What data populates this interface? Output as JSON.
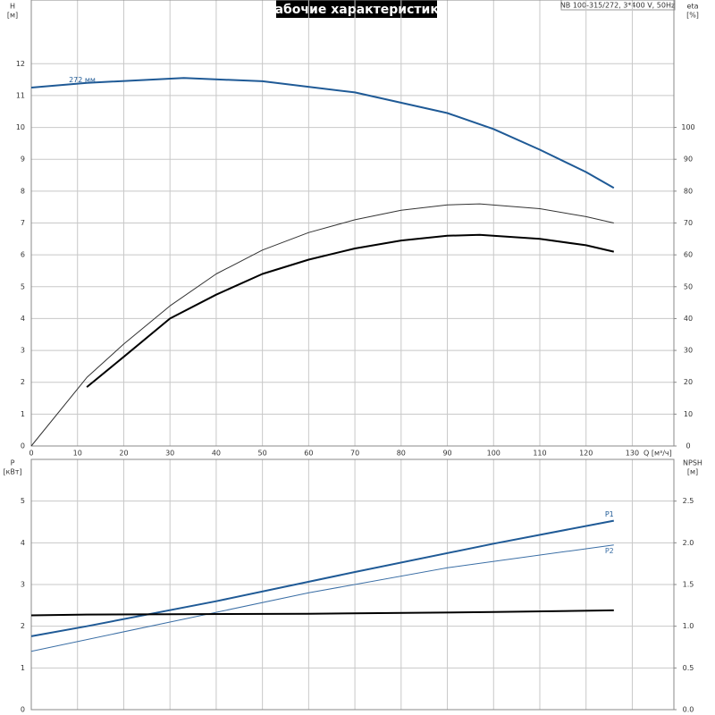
{
  "title": "Рабочие характеристики",
  "subtitle": "NB 100-315/272, 3*400 V, 50Hz",
  "chart_data": [
    {
      "type": "line",
      "y_label": "H",
      "y_unit": "[м]",
      "y2_label": "eta",
      "y2_unit": "[%]",
      "x_label": "Q [м³/ч]",
      "xlim": [
        0,
        139
      ],
      "xticks": [
        0,
        10,
        20,
        30,
        40,
        50,
        60,
        70,
        80,
        90,
        100,
        110,
        120,
        130
      ],
      "ylim": [
        0,
        14
      ],
      "yticks": [
        0,
        1,
        2,
        3,
        4,
        5,
        6,
        7,
        8,
        9,
        10,
        11,
        12
      ],
      "y2lim": [
        0,
        140
      ],
      "y2ticks": [
        0,
        10,
        20,
        30,
        40,
        50,
        60,
        70,
        80,
        90,
        100
      ],
      "grid": true,
      "series": [
        {
          "name": "272 мм",
          "color": "#1f5a96",
          "x": [
            0,
            12,
            33,
            50,
            70,
            90,
            100,
            110,
            120,
            126
          ],
          "values": [
            11.25,
            11.4,
            11.55,
            11.45,
            11.1,
            10.45,
            9.95,
            9.3,
            8.6,
            8.1
          ]
        },
        {
          "color": "#333333",
          "axis": "y2",
          "x": [
            0,
            12,
            20,
            30,
            40,
            50,
            60,
            70,
            80,
            90,
            97,
            110,
            120,
            126
          ],
          "values": [
            0,
            21.5,
            32,
            44,
            54,
            61.5,
            67,
            71,
            74,
            75.7,
            76,
            74.5,
            72,
            70
          ]
        },
        {
          "color": "#000000",
          "axis": "y2",
          "x": [
            12,
            20,
            30,
            40,
            50,
            60,
            70,
            80,
            90,
            97,
            110,
            120,
            126
          ],
          "values": [
            18.5,
            28,
            40,
            47.5,
            54,
            58.5,
            62,
            64.5,
            66,
            66.3,
            65,
            63,
            61
          ]
        }
      ]
    },
    {
      "type": "line",
      "y_label": "P",
      "y_unit": "[кВт]",
      "y2_label": "NPSH",
      "y2_unit": "[м]",
      "xlim": [
        0,
        139
      ],
      "xticks": [
        0,
        10,
        20,
        30,
        40,
        50,
        60,
        70,
        80,
        90,
        100,
        110,
        120,
        130
      ],
      "ylim": [
        0,
        6
      ],
      "yticks": [
        0,
        1,
        2,
        3,
        4,
        5
      ],
      "y2lim": [
        0,
        3
      ],
      "y2ticks": [
        {
          "value": 0,
          "label": "0.0"
        },
        0.5,
        {
          "value": 1,
          "label": "1.0"
        },
        1.5,
        {
          "value": 2,
          "label": "2.0"
        },
        2.5
      ],
      "grid": true,
      "series": [
        {
          "name": "P1",
          "color": "#1f5a96",
          "x": [
            0,
            12,
            40,
            70,
            100,
            126
          ],
          "values": [
            1.76,
            2.0,
            2.6,
            3.3,
            3.98,
            4.53
          ]
        },
        {
          "name": "P2",
          "color": "#3a6ea5",
          "x": [
            0,
            30,
            60,
            90,
            126
          ],
          "values": [
            1.4,
            2.1,
            2.8,
            3.4,
            3.95
          ]
        },
        {
          "color": "#000000",
          "axis": "y2",
          "x": [
            0,
            12,
            60,
            100,
            126
          ],
          "values": [
            1.13,
            1.14,
            1.15,
            1.17,
            1.19
          ]
        }
      ]
    }
  ]
}
